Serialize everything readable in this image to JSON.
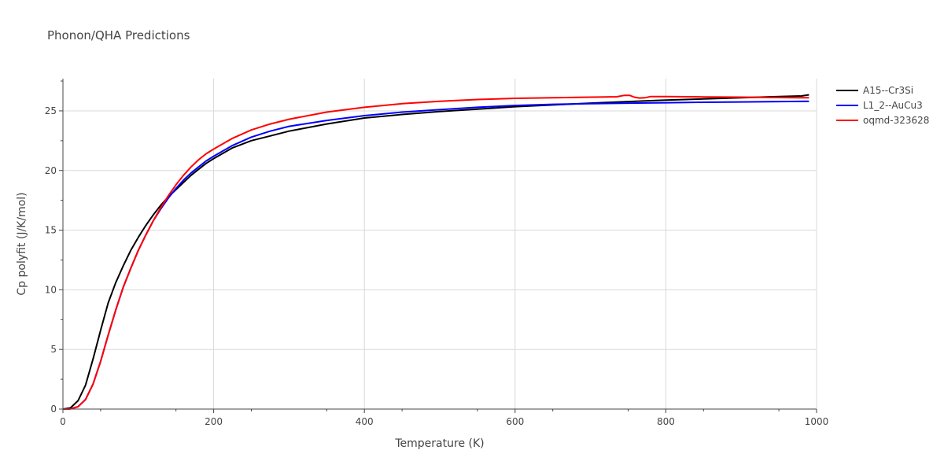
{
  "chart_data": {
    "type": "line",
    "title": "Phonon/QHA Predictions",
    "xlabel": "Temperature (K)",
    "ylabel": "Cp polyfit (J/K/mol)",
    "xlim": [
      0,
      1000
    ],
    "ylim": [
      0,
      27.7
    ],
    "xticks": [
      0,
      200,
      400,
      600,
      800,
      1000
    ],
    "yticks": [
      0,
      5,
      10,
      15,
      20,
      25
    ],
    "grid": true,
    "legend_position": "top-right",
    "series": [
      {
        "name": "A15--Cr3Si",
        "color": "#000000",
        "x": [
          0,
          10,
          20,
          30,
          40,
          50,
          60,
          70,
          80,
          90,
          100,
          110,
          120,
          130,
          140,
          150,
          160,
          170,
          180,
          190,
          200,
          225,
          250,
          275,
          300,
          350,
          400,
          450,
          500,
          550,
          600,
          650,
          700,
          750,
          800,
          850,
          900,
          950,
          980,
          990
        ],
        "y": [
          0,
          0.1,
          0.7,
          2.0,
          4.2,
          6.6,
          8.9,
          10.6,
          12.0,
          13.3,
          14.4,
          15.4,
          16.3,
          17.1,
          17.8,
          18.4,
          19.0,
          19.6,
          20.1,
          20.6,
          21.0,
          21.9,
          22.5,
          22.9,
          23.3,
          23.9,
          24.4,
          24.7,
          24.95,
          25.15,
          25.35,
          25.5,
          25.65,
          25.78,
          25.9,
          26.0,
          26.1,
          26.2,
          26.25,
          26.35
        ]
      },
      {
        "name": "L1_2--AuCu3",
        "color": "#0000ff",
        "x": [
          0,
          10,
          20,
          30,
          40,
          50,
          60,
          70,
          80,
          90,
          100,
          110,
          120,
          130,
          140,
          150,
          160,
          170,
          180,
          190,
          200,
          225,
          250,
          275,
          300,
          350,
          400,
          450,
          500,
          550,
          600,
          650,
          700,
          750,
          800,
          850,
          900,
          950,
          990
        ],
        "y": [
          0,
          0.02,
          0.2,
          0.8,
          2.1,
          4.0,
          6.2,
          8.3,
          10.2,
          11.8,
          13.3,
          14.6,
          15.8,
          16.8,
          17.7,
          18.5,
          19.2,
          19.8,
          20.3,
          20.8,
          21.2,
          22.1,
          22.8,
          23.3,
          23.7,
          24.2,
          24.6,
          24.9,
          25.1,
          25.3,
          25.45,
          25.55,
          25.6,
          25.65,
          25.68,
          25.72,
          25.75,
          25.78,
          25.8
        ]
      },
      {
        "name": "oqmd-323628",
        "color": "#ff0000",
        "x": [
          0,
          10,
          20,
          30,
          40,
          50,
          60,
          70,
          80,
          90,
          100,
          110,
          120,
          130,
          140,
          150,
          160,
          170,
          180,
          190,
          200,
          225,
          250,
          275,
          300,
          350,
          400,
          450,
          500,
          550,
          600,
          650,
          700,
          735,
          745,
          752,
          758,
          765,
          772,
          780,
          800,
          850,
          900,
          950,
          990
        ],
        "y": [
          0,
          0.02,
          0.2,
          0.8,
          2.1,
          4.0,
          6.2,
          8.3,
          10.2,
          11.8,
          13.3,
          14.6,
          15.8,
          16.9,
          17.9,
          18.8,
          19.6,
          20.3,
          20.9,
          21.4,
          21.8,
          22.7,
          23.4,
          23.9,
          24.3,
          24.9,
          25.3,
          25.6,
          25.8,
          25.95,
          26.05,
          26.1,
          26.15,
          26.18,
          26.3,
          26.3,
          26.15,
          26.08,
          26.1,
          26.2,
          26.2,
          26.17,
          26.15,
          26.12,
          26.1
        ]
      }
    ]
  }
}
